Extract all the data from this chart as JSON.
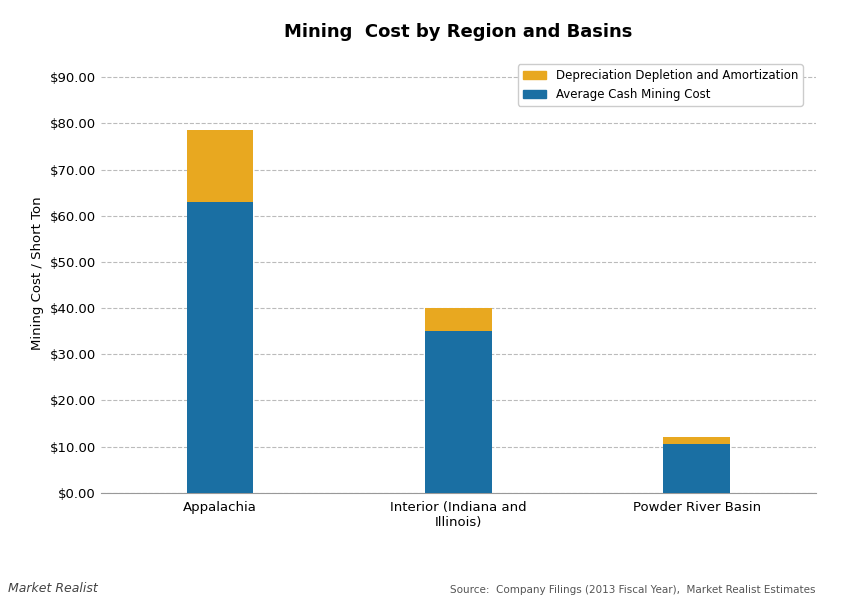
{
  "title": "Mining  Cost by Region and Basins",
  "categories": [
    "Appalachia",
    "Interior (Indiana and\nIllinois)",
    "Powder River Basin"
  ],
  "cash_cost": [
    63.0,
    35.0,
    10.5
  ],
  "dda_cost": [
    15.5,
    5.0,
    1.5
  ],
  "cash_color": "#1a6fa3",
  "dda_color": "#e8a820",
  "ylabel": "Mining Cost / Short Ton",
  "yticks": [
    0,
    10,
    20,
    30,
    40,
    50,
    60,
    70,
    80,
    90
  ],
  "ytick_labels": [
    "$0.00",
    "$10.00",
    "$20.00",
    "$30.00",
    "$40.00",
    "$50.00",
    "$60.00",
    "$70.00",
    "$80.00",
    "$90.00"
  ],
  "ylim": [
    0,
    95
  ],
  "legend_dda": "Depreciation Depletion and Amortization",
  "legend_cash": "Average Cash Mining Cost",
  "source_text": "Source:  Company Filings (2013 Fiscal Year),  Market Realist Estimates",
  "watermark": "Market Realist",
  "background_color": "#ffffff",
  "grid_color": "#bbbbbb",
  "title_fontsize": 13,
  "label_fontsize": 9.5,
  "tick_fontsize": 9.5,
  "bar_width": 0.28
}
